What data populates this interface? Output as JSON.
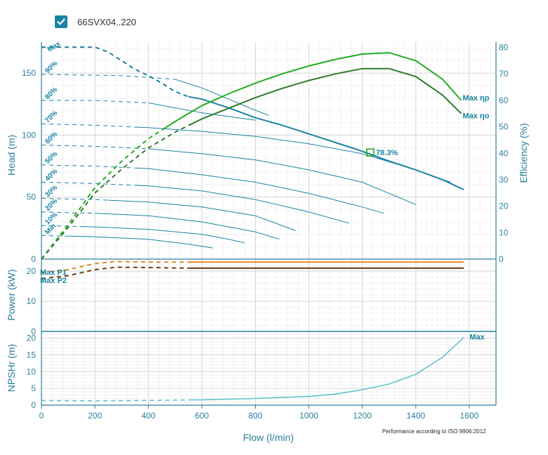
{
  "legend": {
    "label": "66SVX04..220",
    "checked": true
  },
  "note": "Performance according to ISO 9906:2012",
  "colors": {
    "axis": "#2a7f9e",
    "head": "#1a83a3",
    "eff_p": "#22ac22",
    "eff_o": "#2e7a2e",
    "power_p1": "#e08a1e",
    "power_p2": "#6b3a10",
    "npsh": "#5fc4cc",
    "grid": "#dcdcdc"
  },
  "chart_data": {
    "type": "line",
    "x": {
      "label": "Flow (l/min)",
      "range": [
        0,
        1700
      ],
      "ticks": [
        0,
        200,
        400,
        600,
        800,
        1000,
        1200,
        1400,
        1600
      ]
    },
    "head": {
      "ylabel": "Head (m)",
      "yrange": [
        0,
        175
      ],
      "yticks": [
        0,
        50,
        100,
        150
      ],
      "y2label": "Efficiency (%)",
      "y2range": [
        0,
        82
      ],
      "y2ticks": [
        0,
        10,
        20,
        30,
        40,
        50,
        60,
        70,
        80
      ],
      "curves": [
        {
          "label": "Max",
          "solid_from": 550,
          "points": [
            [
              0,
              171
            ],
            [
              100,
              171
            ],
            [
              200,
              171
            ],
            [
              250,
              167
            ],
            [
              300,
              160
            ],
            [
              350,
              153
            ],
            [
              400,
              148
            ],
            [
              450,
              142
            ],
            [
              500,
              135
            ],
            [
              550,
              131
            ],
            [
              600,
              129
            ],
            [
              700,
              122
            ],
            [
              800,
              114
            ],
            [
              900,
              108
            ],
            [
              1000,
              101
            ],
            [
              1100,
              94
            ],
            [
              1200,
              87
            ],
            [
              1300,
              79
            ],
            [
              1400,
              72
            ],
            [
              1500,
              64
            ],
            [
              1580,
              56
            ]
          ]
        },
        {
          "label": "90%",
          "solid_from": 500,
          "points": [
            [
              0,
              149
            ],
            [
              300,
              148
            ],
            [
              500,
              145
            ],
            [
              600,
              138
            ],
            [
              700,
              129
            ],
            [
              800,
              120
            ],
            [
              850,
              116
            ]
          ]
        },
        {
          "label": "80%",
          "solid_from": 400,
          "points": [
            [
              0,
              128
            ],
            [
              200,
              128
            ],
            [
              400,
              126
            ],
            [
              500,
              122
            ],
            [
              600,
              118
            ],
            [
              700,
              115
            ],
            [
              800,
              112
            ]
          ]
        },
        {
          "label": "70%",
          "solid_from": 350,
          "points": [
            [
              0,
              109
            ],
            [
              200,
              108
            ],
            [
              400,
              106
            ],
            [
              600,
              103
            ],
            [
              800,
              99
            ],
            [
              1000,
              93
            ],
            [
              1200,
              85
            ],
            [
              1400,
              72
            ],
            [
              1530,
              62
            ]
          ]
        },
        {
          "label": "60%",
          "solid_from": 400,
          "points": [
            [
              0,
              92
            ],
            [
              200,
              91
            ],
            [
              400,
              89
            ],
            [
              600,
              85
            ],
            [
              800,
              80
            ],
            [
              1000,
              72
            ],
            [
              1200,
              62
            ],
            [
              1400,
              44
            ]
          ]
        },
        {
          "label": "50%",
          "solid_from": 350,
          "points": [
            [
              0,
              76
            ],
            [
              200,
              75
            ],
            [
              400,
              73
            ],
            [
              600,
              68
            ],
            [
              800,
              62
            ],
            [
              1000,
              53
            ],
            [
              1200,
              42
            ],
            [
              1280,
              37
            ]
          ]
        },
        {
          "label": "40%",
          "solid_from": 350,
          "points": [
            [
              0,
              62
            ],
            [
              200,
              61
            ],
            [
              400,
              59
            ],
            [
              600,
              55
            ],
            [
              800,
              48
            ],
            [
              1000,
              38
            ],
            [
              1150,
              29
            ]
          ]
        },
        {
          "label": "30%",
          "solid_from": 250,
          "points": [
            [
              0,
              49
            ],
            [
              200,
              48
            ],
            [
              400,
              46
            ],
            [
              600,
              42
            ],
            [
              800,
              35
            ],
            [
              950,
              23
            ]
          ]
        },
        {
          "label": "20%",
          "solid_from": 200,
          "points": [
            [
              0,
              38
            ],
            [
              200,
              37
            ],
            [
              400,
              35
            ],
            [
              600,
              30
            ],
            [
              800,
              22
            ],
            [
              890,
              16
            ]
          ]
        },
        {
          "label": "10%",
          "solid_from": 150,
          "points": [
            [
              0,
              27
            ],
            [
              200,
              26
            ],
            [
              400,
              24
            ],
            [
              600,
              20
            ],
            [
              700,
              16
            ],
            [
              760,
              13
            ]
          ]
        },
        {
          "label": "Min",
          "solid_from": 100,
          "points": [
            [
              0,
              19
            ],
            [
              200,
              18
            ],
            [
              400,
              16
            ],
            [
              550,
              12
            ],
            [
              640,
              9
            ]
          ]
        }
      ],
      "efficiency": [
        {
          "name": "Max ηp",
          "solid_from": 450,
          "points": [
            [
              0,
              0
            ],
            [
              100,
              13
            ],
            [
              200,
              27
            ],
            [
              300,
              37
            ],
            [
              400,
              45.5
            ],
            [
              500,
              52
            ],
            [
              600,
              58
            ],
            [
              700,
              62.5
            ],
            [
              800,
              66.5
            ],
            [
              900,
              70
            ],
            [
              1000,
              73
            ],
            [
              1100,
              75.5
            ],
            [
              1200,
              77.5
            ],
            [
              1300,
              78
            ],
            [
              1400,
              75
            ],
            [
              1500,
              68
            ],
            [
              1570,
              60
            ]
          ]
        },
        {
          "name": "Max ηo",
          "solid_from": 550,
          "points": [
            [
              0,
              0
            ],
            [
              100,
              12
            ],
            [
              200,
              25
            ],
            [
              300,
              34
            ],
            [
              400,
              42
            ],
            [
              500,
              48
            ],
            [
              600,
              53
            ],
            [
              700,
              57
            ],
            [
              800,
              61
            ],
            [
              900,
              64.5
            ],
            [
              1000,
              67.5
            ],
            [
              1100,
              70
            ],
            [
              1200,
              72
            ],
            [
              1300,
              72
            ],
            [
              1400,
              69
            ],
            [
              1500,
              62
            ],
            [
              1570,
              55
            ]
          ]
        }
      ],
      "bep": {
        "x": 1230,
        "y": 86,
        "label": "78.3%"
      }
    },
    "power": {
      "ylabel": "Power (kW)",
      "yrange": [
        0,
        24
      ],
      "yticks": [
        0,
        10,
        20
      ],
      "series": [
        {
          "name": "Max P1",
          "solid_from": 550,
          "points": [
            [
              0,
              19.5
            ],
            [
              100,
              20.5
            ],
            [
              200,
              22.5
            ],
            [
              280,
              23.2
            ],
            [
              400,
              23
            ],
            [
              550,
              23
            ],
            [
              1580,
              23
            ]
          ]
        },
        {
          "name": "Max P2",
          "solid_from": 550,
          "points": [
            [
              0,
              17.5
            ],
            [
              100,
              18.5
            ],
            [
              200,
              20.5
            ],
            [
              280,
              21.3
            ],
            [
              400,
              21.2
            ],
            [
              550,
              21
            ],
            [
              1580,
              21
            ]
          ]
        }
      ]
    },
    "npsh": {
      "ylabel": "NPSHr (m)",
      "yrange": [
        0,
        22
      ],
      "yticks": [
        0,
        5,
        10,
        15,
        20
      ],
      "curve": {
        "name": "Max",
        "solid_from": 550,
        "points": [
          [
            0,
            1.4
          ],
          [
            200,
            1.3
          ],
          [
            400,
            1.4
          ],
          [
            600,
            1.6
          ],
          [
            800,
            2.0
          ],
          [
            1000,
            2.6
          ],
          [
            1100,
            3.3
          ],
          [
            1200,
            4.6
          ],
          [
            1300,
            6.3
          ],
          [
            1400,
            9.2
          ],
          [
            1500,
            14.3
          ],
          [
            1580,
            20.2
          ]
        ]
      }
    }
  }
}
